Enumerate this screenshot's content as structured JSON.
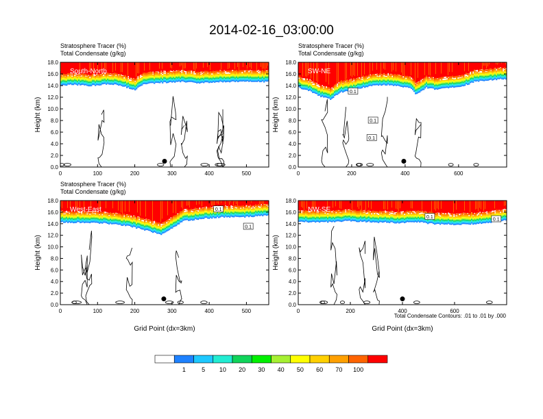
{
  "figure": {
    "title": "2014-02-16_03:00:00",
    "condensate_note": "Total Condensate Contours: .01 to .01 by .000"
  },
  "colorbar": {
    "colors": [
      "#ffffff",
      "#1e82ff",
      "#1ec8ff",
      "#22ecd2",
      "#10d45a",
      "#00f000",
      "#a6f032",
      "#ffff00",
      "#ffd000",
      "#ffa000",
      "#ff6400",
      "#ff0000"
    ],
    "labels": [
      "1",
      "5",
      "10",
      "20",
      "30",
      "40",
      "50",
      "60",
      "70",
      "100"
    ]
  },
  "chart_data": [
    {
      "type": "heatmap",
      "panel_label": "South-North",
      "title_lines": [
        "Stratosphere Tracer   (%)",
        "Total Condensate   (g/kg)"
      ],
      "xlabel": "",
      "ylabel": "Height (km)",
      "xlim": [
        0,
        560
      ],
      "ylim": [
        0,
        18
      ],
      "xticks": [
        0,
        100,
        200,
        300,
        400,
        500
      ],
      "yticks": [
        0,
        2,
        4,
        6,
        8,
        10,
        12,
        14,
        16,
        18
      ],
      "ytick_labels": [
        "0.0",
        "2.0",
        "4.0",
        "6.0",
        "8.0",
        "10.0",
        "12.0",
        "14.0",
        "16.0",
        "18.0"
      ],
      "tropopause_km": [
        [
          0,
          14.4
        ],
        [
          40,
          14.5
        ],
        [
          80,
          14.3
        ],
        [
          120,
          14.6
        ],
        [
          160,
          14.4
        ],
        [
          200,
          13.6
        ],
        [
          220,
          14.5
        ],
        [
          260,
          14.8
        ],
        [
          320,
          15.0
        ],
        [
          380,
          14.8
        ],
        [
          440,
          15.0
        ],
        [
          500,
          15.0
        ],
        [
          560,
          15.0
        ]
      ],
      "marker": {
        "x": 280,
        "y": 1.0
      },
      "contour_labels": []
    },
    {
      "type": "heatmap",
      "panel_label": "SW-NE",
      "title_lines": [
        "Stratosphere Tracer   (%)",
        "Total Condensate   (g/kg)"
      ],
      "xlabel": "",
      "ylabel": "Height (km)",
      "xlim": [
        0,
        780
      ],
      "ylim": [
        0,
        18
      ],
      "xticks": [
        0,
        200,
        400,
        600
      ],
      "yticks": [
        0,
        2,
        4,
        6,
        8,
        10,
        12,
        14,
        16,
        18
      ],
      "ytick_labels": [
        "0.0",
        "2.0",
        "4.0",
        "6.0",
        "8.0",
        "10.0",
        "12.0",
        "14.0",
        "16.0",
        "18.0"
      ],
      "tropopause_km": [
        [
          0,
          14.0
        ],
        [
          40,
          13.5
        ],
        [
          80,
          12.5
        ],
        [
          120,
          12.0
        ],
        [
          160,
          13.2
        ],
        [
          200,
          13.5
        ],
        [
          260,
          14.2
        ],
        [
          320,
          14.5
        ],
        [
          380,
          14.2
        ],
        [
          420,
          14.0
        ],
        [
          440,
          12.8
        ],
        [
          480,
          14.0
        ],
        [
          520,
          13.6
        ],
        [
          560,
          14.0
        ],
        [
          600,
          14.0
        ],
        [
          660,
          15.0
        ],
        [
          720,
          15.3
        ],
        [
          780,
          15.5
        ]
      ],
      "marker": {
        "x": 395,
        "y": 1.0
      },
      "contour_labels": [
        {
          "x": 205,
          "y": 13.0,
          "text": "0.1"
        },
        {
          "x": 280,
          "y": 8.0,
          "text": "0.1"
        },
        {
          "x": 275,
          "y": 5.0,
          "text": "0.1"
        }
      ]
    },
    {
      "type": "heatmap",
      "panel_label": "West-East",
      "title_lines": [
        "Stratosphere Tracer   (%)",
        "Total Condensate   (g/kg)"
      ],
      "xlabel": "Grid Point (dx=3km)",
      "ylabel": "Height (km)",
      "xlim": [
        0,
        560
      ],
      "ylim": [
        0,
        18
      ],
      "xticks": [
        0,
        100,
        200,
        300,
        400,
        500
      ],
      "yticks": [
        0,
        2,
        4,
        6,
        8,
        10,
        12,
        14,
        16,
        18
      ],
      "ytick_labels": [
        "0.0",
        "2.0",
        "4.0",
        "6.0",
        "8.0",
        "10.0",
        "12.0",
        "14.0",
        "16.0",
        "18.0"
      ],
      "tropopause_km": [
        [
          0,
          14.6
        ],
        [
          60,
          14.5
        ],
        [
          120,
          14.4
        ],
        [
          180,
          14.0
        ],
        [
          230,
          13.2
        ],
        [
          270,
          12.5
        ],
        [
          300,
          13.5
        ],
        [
          330,
          14.8
        ],
        [
          380,
          15.2
        ],
        [
          440,
          15.5
        ],
        [
          500,
          15.5
        ],
        [
          560,
          15.8
        ]
      ],
      "marker": {
        "x": 278,
        "y": 1.0
      },
      "contour_labels": [
        {
          "x": 425,
          "y": 16.5,
          "text": "0.1"
        },
        {
          "x": 505,
          "y": 13.5,
          "text": "0.1"
        }
      ]
    },
    {
      "type": "heatmap",
      "panel_label": "NW-SE",
      "title_lines": [
        "",
        ""
      ],
      "xlabel": "Grid Point (dx=3km)",
      "ylabel": "Height (km)",
      "xlim": [
        0,
        800
      ],
      "ylim": [
        0,
        18
      ],
      "xticks": [
        0,
        200,
        400,
        600
      ],
      "yticks": [
        0,
        2,
        4,
        6,
        8,
        10,
        12,
        14,
        16,
        18
      ],
      "ytick_labels": [
        "0.0",
        "2.0",
        "4.0",
        "6.0",
        "8.0",
        "10.0",
        "12.0",
        "14.0",
        "16.0",
        "18.0"
      ],
      "tropopause_km": [
        [
          0,
          14.7
        ],
        [
          100,
          14.6
        ],
        [
          200,
          14.8
        ],
        [
          300,
          14.6
        ],
        [
          380,
          14.5
        ],
        [
          460,
          14.6
        ],
        [
          520,
          14.3
        ],
        [
          600,
          14.2
        ],
        [
          680,
          14.3
        ],
        [
          740,
          14.6
        ],
        [
          800,
          15.0
        ]
      ],
      "marker": {
        "x": 400,
        "y": 1.0
      },
      "contour_labels": [
        {
          "x": 505,
          "y": 15.2,
          "text": "0.1"
        },
        {
          "x": 760,
          "y": 14.8,
          "text": "0.1"
        }
      ]
    }
  ]
}
